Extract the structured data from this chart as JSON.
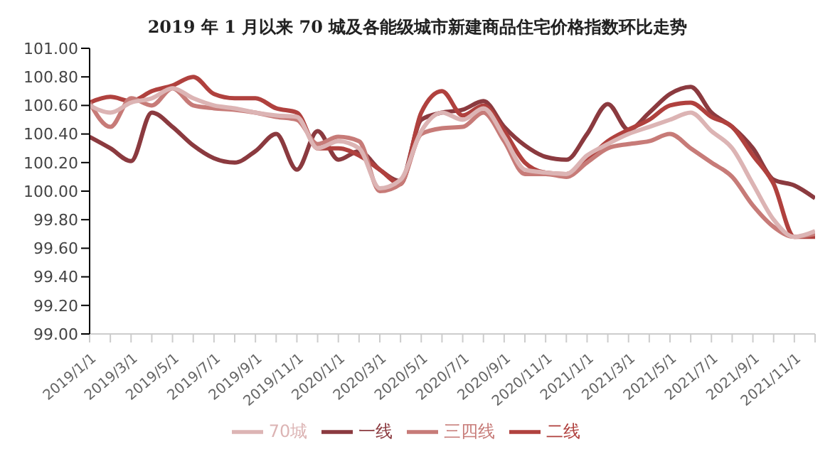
{
  "chart_data": {
    "type": "line",
    "title": "2019 年 1 月以来 70 城及各能级城市新建商品住宅价格指数环比走势",
    "categories": [
      "2019/1/1",
      null,
      "2019/3/1",
      null,
      "2019/5/1",
      null,
      "2019/7/1",
      null,
      "2019/9/1",
      null,
      "2019/11/1",
      null,
      "2020/1/1",
      null,
      "2020/3/1",
      null,
      "2020/5/1",
      null,
      "2020/7/1",
      null,
      "2020/9/1",
      null,
      "2020/11/1",
      null,
      "2021/1/1",
      null,
      "2021/3/1",
      null,
      "2021/5/1",
      null,
      "2021/7/1",
      null,
      "2021/9/1",
      null,
      "2021/11/1",
      null
    ],
    "series": [
      {
        "name": "一线",
        "color": "#8b3a3f",
        "values": [
          100.38,
          100.3,
          100.21,
          100.55,
          100.45,
          100.32,
          100.23,
          100.2,
          100.28,
          100.4,
          100.15,
          100.42,
          100.22,
          100.28,
          100.15,
          100.07,
          100.5,
          100.55,
          100.57,
          100.63,
          100.45,
          100.32,
          100.24,
          100.22,
          100.4,
          100.61,
          100.43,
          100.55,
          100.68,
          100.73,
          100.55,
          100.45,
          100.3,
          100.08,
          100.04,
          99.95
        ]
      },
      {
        "name": "二线",
        "color": "#b0413e",
        "values": [
          100.62,
          100.66,
          100.63,
          100.7,
          100.74,
          100.8,
          100.68,
          100.65,
          100.65,
          100.58,
          100.55,
          100.3,
          100.3,
          100.25,
          100.15,
          100.05,
          100.55,
          100.7,
          100.53,
          100.6,
          100.42,
          100.2,
          100.13,
          100.12,
          100.22,
          100.35,
          100.43,
          100.5,
          100.6,
          100.62,
          100.52,
          100.45,
          100.25,
          100.05,
          99.68,
          99.68
        ]
      },
      {
        "name": "三四线",
        "color": "#c77b78",
        "values": [
          100.62,
          100.45,
          100.65,
          100.6,
          100.72,
          100.6,
          100.58,
          100.57,
          100.55,
          100.52,
          100.5,
          100.33,
          100.38,
          100.35,
          100.0,
          100.05,
          100.4,
          100.44,
          100.45,
          100.55,
          100.35,
          100.12,
          100.12,
          100.1,
          100.2,
          100.3,
          100.33,
          100.35,
          100.4,
          100.3,
          100.2,
          100.1,
          99.9,
          99.75,
          99.68,
          99.7
        ]
      },
      {
        "name": "70城",
        "color": "#dcb4b4",
        "values": [
          100.6,
          100.55,
          100.62,
          100.65,
          100.72,
          100.65,
          100.6,
          100.58,
          100.55,
          100.53,
          100.52,
          100.3,
          100.35,
          100.3,
          100.02,
          100.08,
          100.42,
          100.55,
          100.5,
          100.58,
          100.38,
          100.15,
          100.13,
          100.12,
          100.25,
          100.33,
          100.4,
          100.45,
          100.5,
          100.55,
          100.42,
          100.3,
          100.05,
          99.8,
          99.68,
          99.72
        ]
      }
    ],
    "ylim": [
      99,
      101
    ],
    "yticks": [
      {
        "value": 99,
        "label": "99.00"
      },
      {
        "value": 99.2,
        "label": "99.20"
      },
      {
        "value": 99.4,
        "label": "99.40"
      },
      {
        "value": 99.6,
        "label": "99.60"
      },
      {
        "value": 99.8,
        "label": "99.80"
      },
      {
        "value": 100,
        "label": "100.00"
      },
      {
        "value": 100.2,
        "label": "100.20"
      },
      {
        "value": 100.4,
        "label": "100.40"
      },
      {
        "value": 100.6,
        "label": "100.60"
      },
      {
        "value": 100.8,
        "label": "100.80"
      },
      {
        "value": 101,
        "label": "101.00"
      }
    ],
    "grid": false,
    "legend": "bottom",
    "marker": "none",
    "line_style": "solid"
  }
}
